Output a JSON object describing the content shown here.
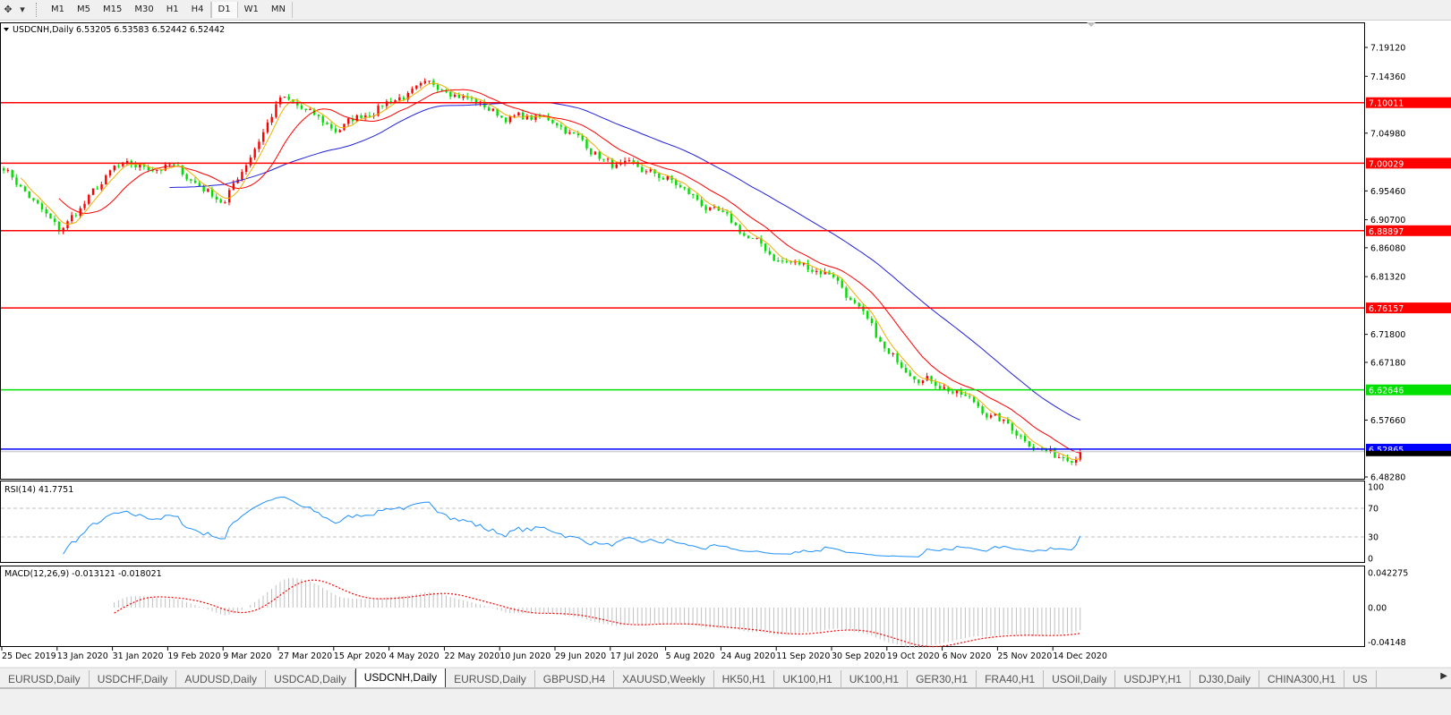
{
  "toolbar": {
    "cursor_icon": "crosshair-cursor-icon",
    "timeframes": [
      "M1",
      "M5",
      "M15",
      "M30",
      "H1",
      "H4",
      "D1",
      "W1",
      "MN"
    ],
    "active_timeframe": "D1"
  },
  "chart_data": {
    "type": "candlestick",
    "header": "USDCNH,Daily",
    "ohlc": "6.53205 6.53583 6.52442 6.52442",
    "x_ticks": [
      "25 Dec 2019",
      "13 Jan 2020",
      "31 Jan 2020",
      "19 Feb 2020",
      "9 Mar 2020",
      "27 Mar 2020",
      "15 Apr 2020",
      "4 May 2020",
      "22 May 2020",
      "10 Jun 2020",
      "29 Jun 2020",
      "17 Jul 2020",
      "5 Aug 2020",
      "24 Aug 2020",
      "11 Sep 2020",
      "30 Sep 2020",
      "19 Oct 2020",
      "6 Nov 2020",
      "25 Nov 2020",
      "14 Dec 2020"
    ],
    "approx_close_at_ticks": [
      6.996,
      6.886,
      6.989,
      6.996,
      6.937,
      7.107,
      7.055,
      7.107,
      7.129,
      7.078,
      7.07,
      6.996,
      6.974,
      6.908,
      6.841,
      6.819,
      6.679,
      6.635,
      6.576,
      6.517
    ],
    "last_close": 6.52442,
    "y_ticks": [
      "7.19120",
      "7.14360",
      "7.04980",
      "6.95460",
      "6.90700",
      "6.86080",
      "6.81320",
      "6.71800",
      "6.67180",
      "6.57660",
      "6.48280"
    ],
    "ylim": [
      6.4828,
      7.1912
    ],
    "levels": [
      {
        "value": "7.10011",
        "color": "#ff0000"
      },
      {
        "value": "7.00029",
        "color": "#ff0000"
      },
      {
        "value": "6.88897",
        "color": "#ff0000"
      },
      {
        "value": "6.76157",
        "color": "#ff0000"
      },
      {
        "value": "6.62646",
        "color": "#00e000"
      },
      {
        "value": "6.52865",
        "color": "#0000ff"
      }
    ],
    "bid_line_color": "#c0c0c0",
    "candle_colors": {
      "up": "#ff0000",
      "down": "#00dd00"
    },
    "moving_averages": [
      {
        "color": "#2020dd"
      },
      {
        "color": "#ff0000"
      },
      {
        "color": "#f0b000"
      }
    ],
    "rsi": {
      "label": "RSI(14) 41.7751",
      "ticks": [
        "100",
        "70",
        "30",
        "0"
      ],
      "line_color": "#1e90ff"
    },
    "macd": {
      "label": "MACD(12,26,9) -0.013121 -0.018021",
      "ticks": [
        "0.042275",
        "0.00",
        "-0.04148"
      ],
      "hist_color": "#c0c0c0",
      "signal_color": "#ff0000"
    }
  },
  "tabs": [
    "EURUSD,Daily",
    "USDCHF,Daily",
    "AUDUSD,Daily",
    "USDCAD,Daily",
    "USDCNH,Daily",
    "EURUSD,Daily",
    "GBPUSD,H4",
    "XAUUSD,Weekly",
    "HK50,H1",
    "UK100,H1",
    "UK100,H1",
    "GER30,H1",
    "FRA40,H1",
    "USOil,Daily",
    "USDJPY,H1",
    "DJ30,Daily",
    "CHINA300,H1",
    "US"
  ],
  "active_tab": "USDCNH,Daily"
}
